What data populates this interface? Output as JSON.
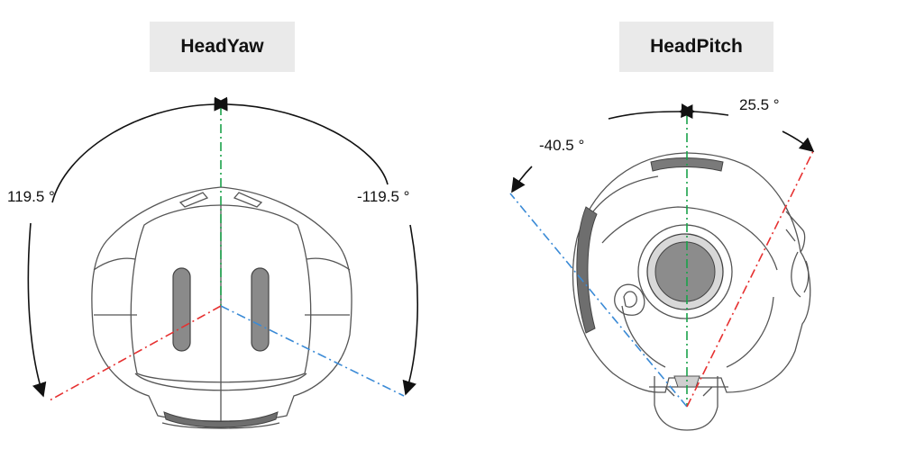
{
  "head_yaw": {
    "title": "HeadYaw",
    "left_angle": "119.5 °",
    "right_angle": "-119.5 °"
  },
  "head_pitch": {
    "title": "HeadPitch",
    "left_angle": "-40.5 °",
    "right_angle": "25.5 °"
  },
  "colors": {
    "center_axis": "#1aa24a",
    "limit_red": "#e63030",
    "limit_blue": "#3a8ad6",
    "arc": "#111111",
    "outline": "#555555",
    "grille": "#777777"
  }
}
